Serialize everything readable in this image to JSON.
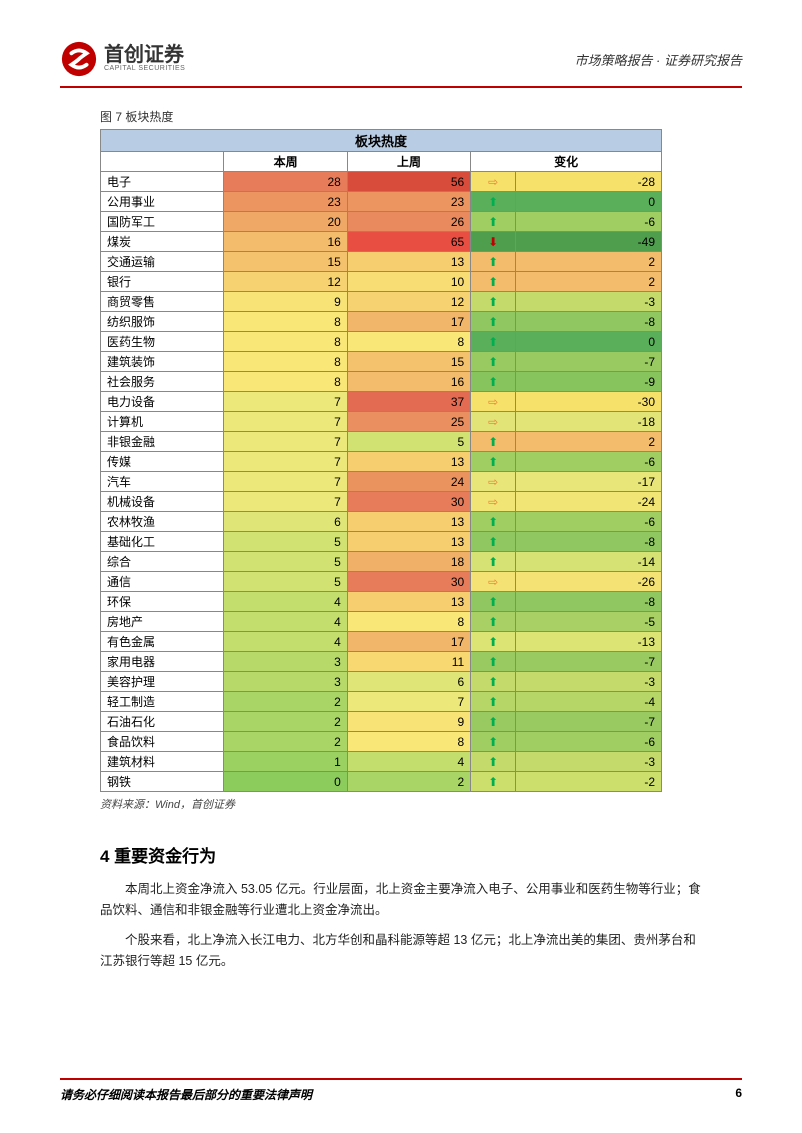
{
  "header": {
    "logo_cn": "首创证券",
    "logo_en": "CAPITAL SECURITIES",
    "right_text": "市场策略报告 · 证券研究报告"
  },
  "figure": {
    "caption": "图 7 板块热度",
    "table_title": "板块热度",
    "columns": [
      "本周",
      "上周",
      "变化"
    ],
    "source": "资料来源：Wind，首创证券"
  },
  "table_style": {
    "title_bg": "#b8cce4",
    "border_color": "#888888",
    "arrow_up_color": "#00b050",
    "arrow_down_color": "#c00000",
    "arrow_right_color": "#ed7d31"
  },
  "rows": [
    {
      "name": "电子",
      "this_week": 28,
      "last_week": 56,
      "change": -28,
      "tw_bg": "#e67c5a",
      "lw_bg": "#d84c3b",
      "ch_bg": "#f6e26b",
      "arrow": "right"
    },
    {
      "name": "公用事业",
      "this_week": 23,
      "last_week": 23,
      "change": 0,
      "tw_bg": "#ec9560",
      "lw_bg": "#ec9560",
      "ch_bg": "#5aaf5a",
      "arrow": "up"
    },
    {
      "name": "国防军工",
      "this_week": 20,
      "last_week": 26,
      "change": -6,
      "tw_bg": "#efa866",
      "lw_bg": "#e98a5e",
      "ch_bg": "#a0ce63",
      "arrow": "up"
    },
    {
      "name": "煤炭",
      "this_week": 16,
      "last_week": 65,
      "change": -49,
      "tw_bg": "#f3bc6c",
      "lw_bg": "#e84f42",
      "ch_bg": "#4e9e4e",
      "arrow": "down"
    },
    {
      "name": "交通运输",
      "this_week": 15,
      "last_week": 13,
      "change": 2,
      "tw_bg": "#f4c26d",
      "lw_bg": "#f6cd6f",
      "ch_bg": "#f3bc6c",
      "arrow": "up"
    },
    {
      "name": "银行",
      "this_week": 12,
      "last_week": 10,
      "change": 2,
      "tw_bg": "#f6d370",
      "lw_bg": "#f7dd73",
      "ch_bg": "#f3bc6c",
      "arrow": "up"
    },
    {
      "name": "商贸零售",
      "this_week": 9,
      "last_week": 12,
      "change": -3,
      "tw_bg": "#f8e376",
      "lw_bg": "#f6d370",
      "ch_bg": "#c4da6a",
      "arrow": "up"
    },
    {
      "name": "纺织服饰",
      "this_week": 8,
      "last_week": 17,
      "change": -8,
      "tw_bg": "#f9e878",
      "lw_bg": "#f2b66a",
      "ch_bg": "#90c760",
      "arrow": "up"
    },
    {
      "name": "医药生物",
      "this_week": 8,
      "last_week": 8,
      "change": 0,
      "tw_bg": "#f9e878",
      "lw_bg": "#f9e878",
      "ch_bg": "#5aaf5a",
      "arrow": "up"
    },
    {
      "name": "建筑装饰",
      "this_week": 8,
      "last_week": 15,
      "change": -7,
      "tw_bg": "#f9e878",
      "lw_bg": "#f4c26d",
      "ch_bg": "#98ca61",
      "arrow": "up"
    },
    {
      "name": "社会服务",
      "this_week": 8,
      "last_week": 16,
      "change": -9,
      "tw_bg": "#f9e878",
      "lw_bg": "#f3bc6c",
      "ch_bg": "#88c45e",
      "arrow": "up"
    },
    {
      "name": "电力设备",
      "this_week": 7,
      "last_week": 37,
      "change": -30,
      "tw_bg": "#ece97a",
      "lw_bg": "#e36b52",
      "ch_bg": "#f6e26b",
      "arrow": "right"
    },
    {
      "name": "计算机",
      "this_week": 7,
      "last_week": 25,
      "change": -18,
      "tw_bg": "#ece97a",
      "lw_bg": "#ea8f5f",
      "ch_bg": "#e3e478",
      "arrow": "right"
    },
    {
      "name": "非银金融",
      "this_week": 7,
      "last_week": 5,
      "change": 2,
      "tw_bg": "#ece97a",
      "lw_bg": "#d1e272",
      "ch_bg": "#f3bc6c",
      "arrow": "up"
    },
    {
      "name": "传媒",
      "this_week": 7,
      "last_week": 13,
      "change": -6,
      "tw_bg": "#ece97a",
      "lw_bg": "#f6cd6f",
      "ch_bg": "#a0ce63",
      "arrow": "up"
    },
    {
      "name": "汽车",
      "this_week": 7,
      "last_week": 24,
      "change": -17,
      "tw_bg": "#ece97a",
      "lw_bg": "#eb935f",
      "ch_bg": "#e8e679",
      "arrow": "right"
    },
    {
      "name": "机械设备",
      "this_week": 7,
      "last_week": 30,
      "change": -24,
      "tw_bg": "#ece97a",
      "lw_bg": "#e67c5a",
      "ch_bg": "#f1e576",
      "arrow": "right"
    },
    {
      "name": "农林牧渔",
      "this_week": 6,
      "last_week": 13,
      "change": -6,
      "tw_bg": "#dfe677",
      "lw_bg": "#f6cd6f",
      "ch_bg": "#a0ce63",
      "arrow": "up"
    },
    {
      "name": "基础化工",
      "this_week": 5,
      "last_week": 13,
      "change": -8,
      "tw_bg": "#d1e272",
      "lw_bg": "#f6cd6f",
      "ch_bg": "#90c760",
      "arrow": "up"
    },
    {
      "name": "综合",
      "this_week": 5,
      "last_week": 18,
      "change": -14,
      "tw_bg": "#d1e272",
      "lw_bg": "#f1b068",
      "ch_bg": "#d6e273",
      "arrow": "up"
    },
    {
      "name": "通信",
      "this_week": 5,
      "last_week": 30,
      "change": -26,
      "tw_bg": "#d1e272",
      "lw_bg": "#e67c5a",
      "ch_bg": "#f4e374",
      "arrow": "right"
    },
    {
      "name": "环保",
      "this_week": 4,
      "last_week": 13,
      "change": -8,
      "tw_bg": "#c4de6e",
      "lw_bg": "#f6cd6f",
      "ch_bg": "#90c760",
      "arrow": "up"
    },
    {
      "name": "房地产",
      "this_week": 4,
      "last_week": 8,
      "change": -5,
      "tw_bg": "#c4de6e",
      "lw_bg": "#f9e878",
      "ch_bg": "#a8d065",
      "arrow": "up"
    },
    {
      "name": "有色金属",
      "this_week": 4,
      "last_week": 17,
      "change": -13,
      "tw_bg": "#c4de6e",
      "lw_bg": "#f2b66a",
      "ch_bg": "#dce474",
      "arrow": "up"
    },
    {
      "name": "家用电器",
      "this_week": 3,
      "last_week": 11,
      "change": -7,
      "tw_bg": "#b6d96a",
      "lw_bg": "#f7d871",
      "ch_bg": "#98ca61",
      "arrow": "up"
    },
    {
      "name": "美容护理",
      "this_week": 3,
      "last_week": 6,
      "change": -3,
      "tw_bg": "#b6d96a",
      "lw_bg": "#dfe677",
      "ch_bg": "#c4da6a",
      "arrow": "up"
    },
    {
      "name": "轻工制造",
      "this_week": 2,
      "last_week": 7,
      "change": -4,
      "tw_bg": "#a8d565",
      "lw_bg": "#ece97a",
      "ch_bg": "#b6d667",
      "arrow": "up"
    },
    {
      "name": "石油石化",
      "this_week": 2,
      "last_week": 9,
      "change": -7,
      "tw_bg": "#a8d565",
      "lw_bg": "#f8e376",
      "ch_bg": "#98ca61",
      "arrow": "up"
    },
    {
      "name": "食品饮料",
      "this_week": 2,
      "last_week": 8,
      "change": -6,
      "tw_bg": "#a8d565",
      "lw_bg": "#f9e878",
      "ch_bg": "#a0ce63",
      "arrow": "up"
    },
    {
      "name": "建筑材料",
      "this_week": 1,
      "last_week": 4,
      "change": -3,
      "tw_bg": "#9ad161",
      "lw_bg": "#c4de6e",
      "ch_bg": "#c4da6a",
      "arrow": "up"
    },
    {
      "name": "钢铁",
      "this_week": 0,
      "last_week": 2,
      "change": -2,
      "tw_bg": "#8ccc5d",
      "lw_bg": "#a8d565",
      "ch_bg": "#ccde6c",
      "arrow": "up"
    }
  ],
  "section": {
    "heading": "4 重要资金行为",
    "para1": "本周北上资金净流入 53.05 亿元。行业层面，北上资金主要净流入电子、公用事业和医药生物等行业；食品饮料、通信和非银金融等行业遭北上资金净流出。",
    "para2": "个股来看，北上净流入长江电力、北方华创和晶科能源等超 13 亿元；北上净流出美的集团、贵州茅台和江苏银行等超 15 亿元。"
  },
  "footer": {
    "text": "请务必仔细阅读本报告最后部分的重要法律声明",
    "page": "6"
  }
}
